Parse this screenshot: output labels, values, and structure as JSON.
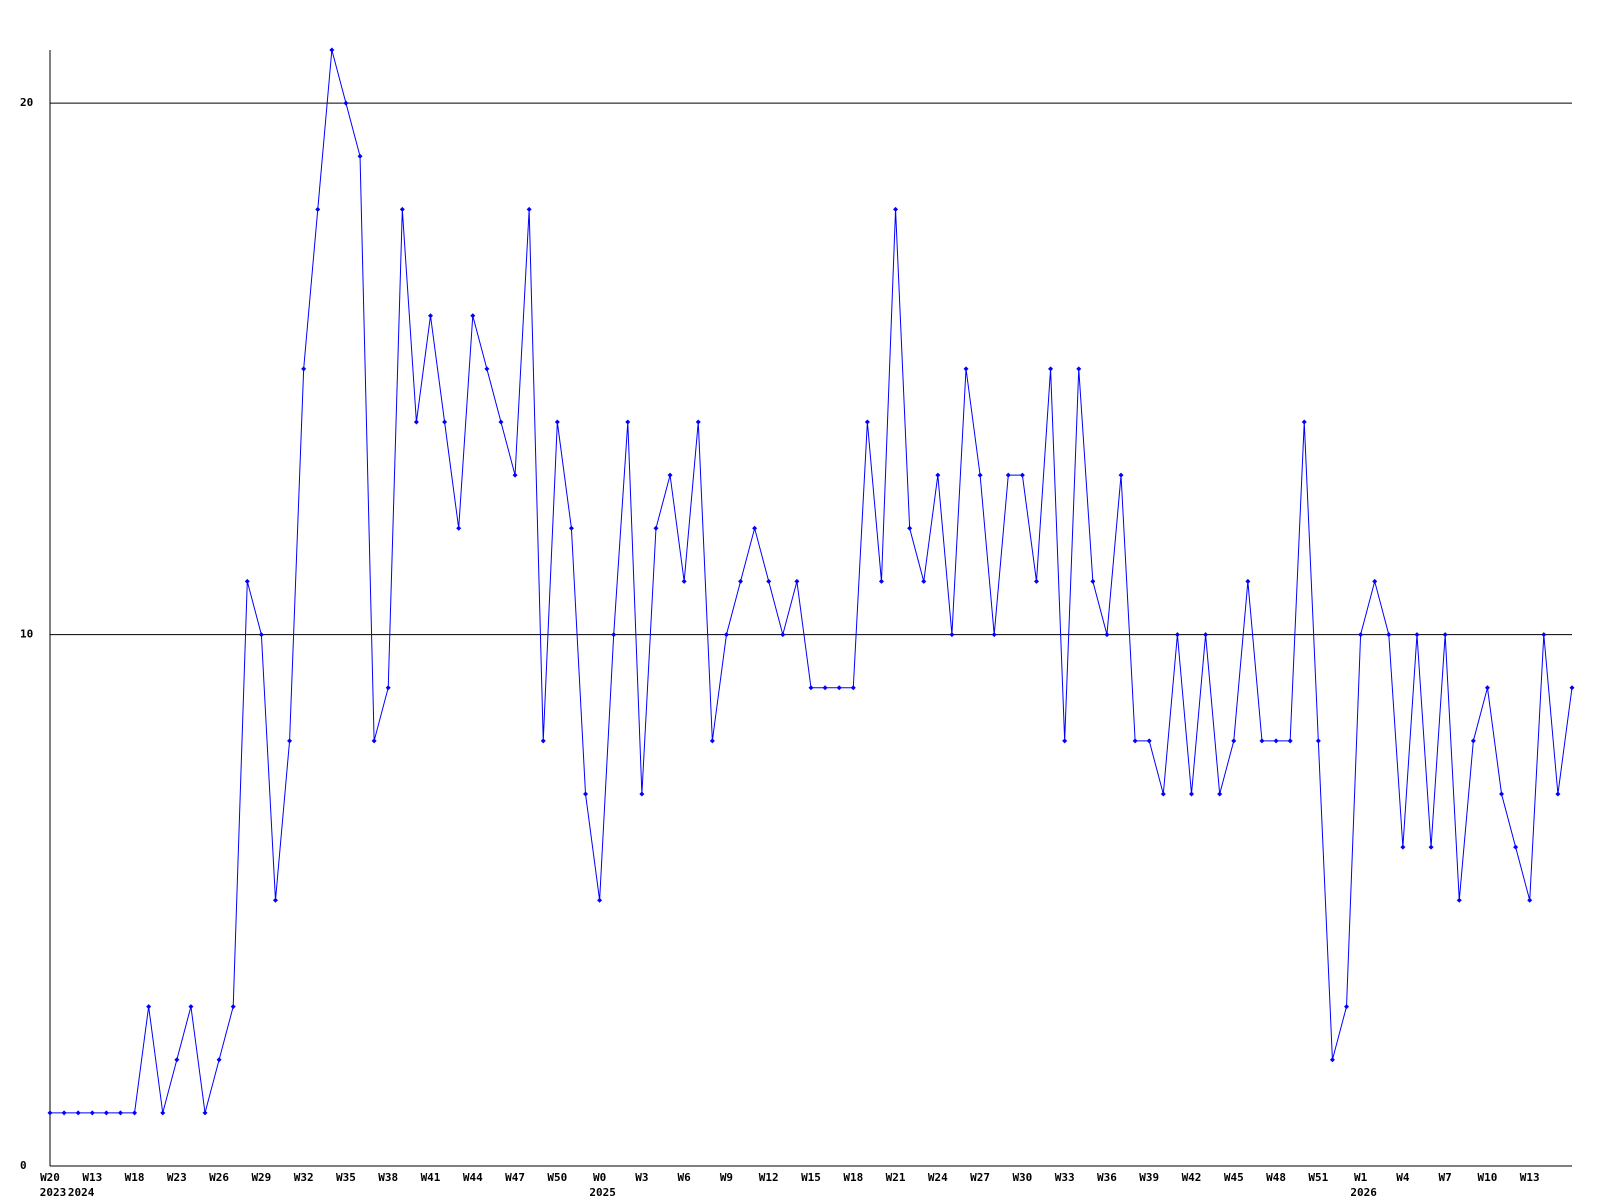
{
  "chart_data": {
    "type": "line",
    "categories": [
      "W20",
      null,
      null,
      "W13",
      null,
      null,
      "W18",
      null,
      null,
      "W23",
      null,
      null,
      "W26",
      null,
      null,
      "W29",
      null,
      null,
      "W32",
      null,
      null,
      "W35",
      null,
      null,
      "W38",
      null,
      null,
      "W41",
      null,
      null,
      "W44",
      null,
      null,
      "W47",
      null,
      null,
      "W50",
      null,
      null,
      "W0",
      null,
      null,
      "W3",
      null,
      null,
      "W6",
      null,
      null,
      "W9",
      null,
      null,
      "W12",
      null,
      null,
      "W15",
      null,
      null,
      "W18",
      null,
      null,
      "W21",
      null,
      null,
      "W24",
      null,
      null,
      "W27",
      null,
      null,
      "W30",
      null,
      null,
      "W33",
      null,
      null,
      "W36",
      null,
      null,
      "W39",
      null,
      null,
      "W42",
      null,
      null,
      "W45",
      null,
      null,
      "W48",
      null,
      null,
      "W51",
      null,
      null,
      "W1",
      null,
      null,
      "W4",
      null,
      null,
      "W7",
      null,
      null,
      "W10",
      null,
      null,
      "W13",
      null,
      null,
      null
    ],
    "years": [
      "2023",
      null,
      "2024",
      null,
      null,
      null,
      null,
      null,
      null,
      null,
      null,
      null,
      null,
      null,
      null,
      null,
      null,
      null,
      null,
      null,
      null,
      null,
      null,
      null,
      null,
      null,
      null,
      null,
      null,
      null,
      null,
      null,
      null,
      null,
      null,
      null,
      null,
      null,
      null,
      "2025",
      null,
      null,
      null,
      null,
      null,
      null,
      null,
      null,
      null,
      null,
      null,
      null,
      null,
      null,
      null,
      null,
      null,
      null,
      null,
      null,
      null,
      null,
      null,
      null,
      null,
      null,
      null,
      null,
      null,
      null,
      null,
      null,
      null,
      null,
      null,
      null,
      null,
      null,
      null,
      null,
      null,
      null,
      null,
      null,
      null,
      null,
      null,
      null,
      null,
      null,
      null,
      null,
      null,
      "2026",
      null,
      null,
      null,
      null,
      null,
      null,
      null,
      null,
      null,
      null,
      null,
      null,
      null,
      null,
      null
    ],
    "series": [
      {
        "color": "#0000ff",
        "values": [
          1,
          1,
          1,
          1,
          1,
          1,
          1,
          3,
          1,
          2,
          3,
          1,
          2,
          3,
          11,
          10,
          5,
          8,
          15,
          18,
          21,
          20,
          19,
          8,
          9,
          18,
          14,
          16,
          14,
          12,
          16,
          15,
          14,
          13,
          18,
          8,
          14,
          12,
          7,
          5,
          10,
          14,
          7,
          12,
          13,
          11,
          14,
          8,
          10,
          11,
          12,
          11,
          10,
          11,
          9,
          9,
          9,
          9,
          14,
          11,
          18,
          12,
          11,
          13,
          10,
          15,
          13,
          10,
          13,
          13,
          11,
          15,
          8,
          15,
          11,
          10,
          13,
          8,
          8,
          7,
          10,
          7,
          10,
          7,
          8,
          11,
          8,
          8,
          8,
          14,
          8,
          2,
          3,
          10,
          11,
          10,
          6,
          10,
          6,
          10,
          5,
          8,
          9,
          7,
          6,
          5,
          10,
          7,
          9
        ]
      }
    ],
    "ylim": [
      0,
      21
    ],
    "yticks": [
      0,
      10,
      20
    ],
    "grid": true
  }
}
